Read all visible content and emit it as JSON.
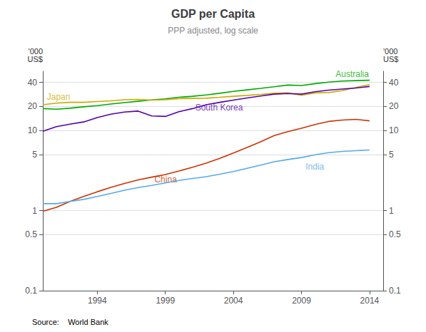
{
  "chart_data": {
    "type": "line",
    "title": "GDP per Capita",
    "subtitle": "PPP adjusted, log scale",
    "ylabel": "'000\nUS$",
    "y2label": "'000\nUS$",
    "source": "Source:    World Bank",
    "log": "y",
    "grid": true,
    "xlim": [
      1990,
      2015
    ],
    "xticks": [
      1994,
      1999,
      2004,
      2009,
      2014
    ],
    "ylim": [
      0.1,
      55
    ],
    "yticks": [
      0.1,
      0.5,
      1,
      5,
      10,
      20,
      40
    ],
    "y2lim": [
      0.1,
      55
    ],
    "y2ticks": [
      0.1,
      0.5,
      1,
      5,
      10,
      20,
      40
    ],
    "x": [
      1990,
      1991,
      1992,
      1993,
      1994,
      1995,
      1996,
      1997,
      1998,
      1999,
      2000,
      2001,
      2002,
      2003,
      2004,
      2005,
      2006,
      2007,
      2008,
      2009,
      2010,
      2011,
      2012,
      2013,
      2014
    ],
    "series": [
      {
        "name": "Australia",
        "color": "#00aa00",
        "values": [
          18.8,
          18.5,
          19.0,
          19.8,
          20.5,
          21.4,
          22.3,
          23.2,
          24.1,
          24.9,
          26.0,
          26.8,
          27.8,
          29.2,
          30.8,
          32.2,
          33.6,
          35.2,
          37.0,
          36.5,
          38.5,
          40.2,
          41.5,
          42.0,
          42.5
        ]
      },
      {
        "name": "Japan",
        "color": "#ccaa00",
        "values": [
          21.0,
          22.0,
          22.5,
          22.5,
          23.0,
          23.5,
          24.2,
          24.5,
          24.0,
          24.2,
          25.0,
          25.2,
          25.3,
          26.0,
          26.8,
          27.5,
          28.3,
          29.2,
          29.5,
          27.5,
          29.5,
          29.8,
          31.5,
          34.5,
          37.5
        ]
      },
      {
        "name": "South Korea",
        "color": "#5500aa",
        "values": [
          9.8,
          11.2,
          12.0,
          12.8,
          14.5,
          16.0,
          17.0,
          17.5,
          15.2,
          15.0,
          17.2,
          18.8,
          21.0,
          22.5,
          24.0,
          25.5,
          27.0,
          28.5,
          29.0,
          28.5,
          30.5,
          32.0,
          33.0,
          34.0,
          35.5
        ]
      },
      {
        "name": "China",
        "color": "#cc3300",
        "values": [
          0.98,
          1.1,
          1.3,
          1.5,
          1.72,
          1.95,
          2.18,
          2.42,
          2.62,
          2.82,
          3.12,
          3.48,
          3.92,
          4.5,
          5.25,
          6.15,
          7.25,
          8.65,
          9.7,
          10.7,
          11.9,
          13.0,
          13.5,
          13.8,
          13.2
        ]
      },
      {
        "name": "India",
        "color": "#55aaee",
        "values": [
          1.22,
          1.22,
          1.3,
          1.38,
          1.5,
          1.64,
          1.8,
          1.94,
          2.06,
          2.22,
          2.38,
          2.52,
          2.65,
          2.85,
          3.08,
          3.38,
          3.7,
          4.08,
          4.35,
          4.6,
          4.98,
          5.3,
          5.48,
          5.6,
          5.72
        ]
      }
    ],
    "annotations": [
      {
        "text": "Australia",
        "x": 2011.5,
        "y": 45,
        "color": "#00aa00"
      },
      {
        "text": "Japan",
        "x": 1990.3,
        "y": 23.5,
        "color": "#ccaa00"
      },
      {
        "text": "South Korea",
        "x": 2001.2,
        "y": 17.2,
        "color": "#5500aa"
      },
      {
        "text": "China",
        "x": 1998.2,
        "y": 2.15,
        "color": "#cc3300"
      },
      {
        "text": "India",
        "x": 2009.3,
        "y": 3.15,
        "color": "#55aaee"
      }
    ]
  }
}
